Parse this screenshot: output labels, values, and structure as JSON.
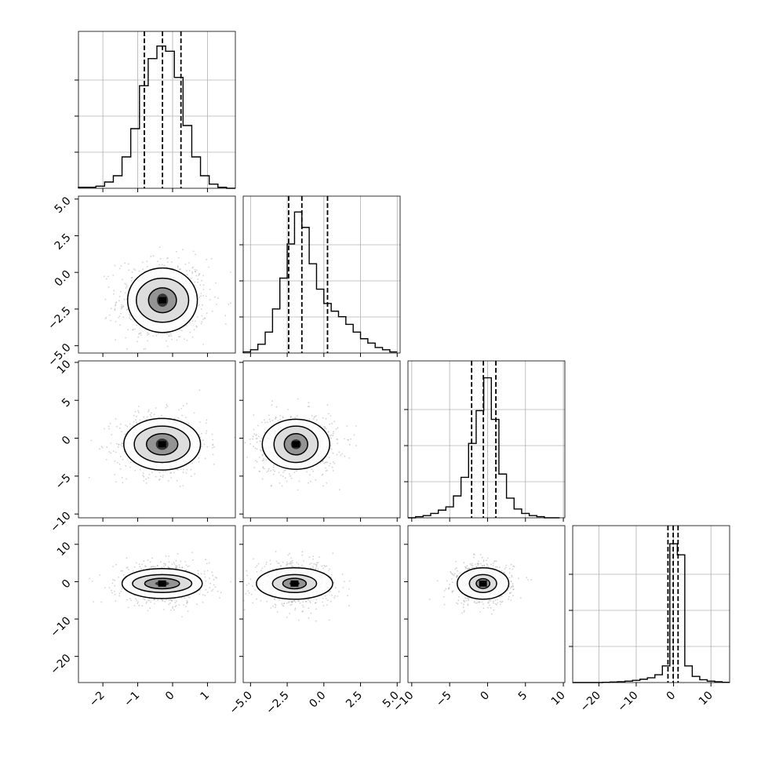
{
  "chart_data": {
    "type": "corner",
    "colors": {
      "hist": "#000000",
      "scatter": "#9a9a9a",
      "grid": "#b0b0b0",
      "quantile": "#000000"
    },
    "dims": [
      {
        "lim": [
          -2.7,
          1.8
        ],
        "ticks": [
          -2,
          -1,
          0,
          1
        ],
        "tick_labels": [
          "−2",
          "−1",
          "0",
          "1"
        ],
        "hist_x": [
          -2.7,
          -2.45,
          -2.2,
          -1.95,
          -1.7,
          -1.45,
          -1.2,
          -0.95,
          -0.7,
          -0.45,
          -0.2,
          0.05,
          0.3,
          0.55,
          0.8,
          1.05,
          1.3,
          1.55,
          1.8
        ],
        "hist_counts": [
          1,
          1,
          2,
          6,
          12,
          30,
          57,
          98,
          124,
          136,
          131,
          106,
          60,
          30,
          12,
          4,
          1,
          0
        ],
        "hist_max": 138,
        "quantiles": [
          -0.81,
          -0.29,
          0.24
        ],
        "mean": -0.29,
        "sd": 0.52
      },
      {
        "lim": [
          -5.5,
          5.2
        ],
        "ticks": [
          -5.0,
          -2.5,
          0.0,
          2.5,
          5.0
        ],
        "tick_labels": [
          "−5.0",
          "−2.5",
          "0.0",
          "2.5",
          "5.0"
        ],
        "hist_x": [
          -5.5,
          -5.0,
          -4.5,
          -4.0,
          -3.5,
          -3.0,
          -2.5,
          -2.0,
          -1.5,
          -1.0,
          -0.5,
          0.0,
          0.5,
          1.0,
          1.5,
          2.0,
          2.5,
          3.0,
          3.5,
          4.0,
          4.5,
          5.0
        ],
        "hist_counts": [
          1,
          3,
          8,
          19,
          40,
          68,
          99,
          128,
          114,
          81,
          58,
          45,
          38,
          33,
          26,
          19,
          13,
          9,
          5,
          3,
          1
        ],
        "hist_max": 131,
        "quantiles": [
          -2.4,
          -1.5,
          0.25
        ],
        "mean": -1.6,
        "sd": 1.3
      },
      {
        "lim": [
          -10.5,
          10.2
        ],
        "ticks": [
          -10,
          -5,
          0,
          5,
          10
        ],
        "tick_labels": [
          "−10",
          "−5",
          "0",
          "5",
          "10"
        ],
        "hist_x": [
          -10.5,
          -9.5,
          -8.5,
          -7.5,
          -6.5,
          -5.5,
          -4.5,
          -3.5,
          -2.5,
          -1.5,
          -0.5,
          0.5,
          1.5,
          2.5,
          3.5,
          4.5,
          5.5,
          6.5,
          7.5,
          8.5,
          9.5
        ],
        "hist_counts": [
          0,
          1,
          2,
          4,
          7,
          10,
          20,
          37,
          68,
          98,
          128,
          90,
          40,
          18,
          8,
          4,
          2,
          1,
          0,
          0
        ],
        "hist_max": 132,
        "quantiles": [
          -2.1,
          -0.55,
          1.1
        ],
        "mean": -0.5,
        "sd": 1.6
      },
      {
        "lim": [
          -27,
          15
        ],
        "ticks": [
          -20,
          -10,
          0,
          10
        ],
        "tick_labels": [
          "−20",
          "−10",
          "0",
          "10"
        ],
        "hist_x": [
          -27,
          -25,
          -23,
          -21,
          -19,
          -17,
          -15,
          -13,
          -11,
          -9,
          -7,
          -5,
          -3,
          -1,
          1,
          3,
          5,
          7,
          9,
          11,
          13,
          15
        ],
        "hist_counts": [
          0,
          0,
          0,
          0,
          1,
          2,
          3,
          5,
          8,
          12,
          17,
          28,
          60,
          500,
          460,
          60,
          22,
          10,
          5,
          3,
          1
        ],
        "hist_max": 520,
        "quantiles": [
          -1.5,
          -0.1,
          1.2
        ],
        "mean": -0.1,
        "sd": 2.8
      }
    ],
    "pairs": [
      {
        "row": 1,
        "col": 0,
        "center": [
          -0.29,
          -1.9
        ],
        "spread": [
          0.5,
          1.1
        ],
        "levels": [
          [
            0.16,
            0.45
          ],
          [
            0.4,
            0.85
          ],
          [
            0.75,
            1.5
          ],
          [
            1.0,
            2.2
          ]
        ]
      },
      {
        "row": 2,
        "col": 0,
        "center": [
          -0.3,
          -0.8
        ],
        "spread": [
          0.5,
          1.6
        ],
        "levels": [
          [
            0.18,
            0.75
          ],
          [
            0.45,
            1.4
          ],
          [
            0.8,
            2.4
          ],
          [
            1.1,
            3.4
          ]
        ]
      },
      {
        "row": 2,
        "col": 1,
        "center": [
          -1.9,
          -0.8
        ],
        "spread": [
          1.1,
          1.6
        ],
        "levels": [
          [
            0.35,
            0.65
          ],
          [
            0.8,
            1.4
          ],
          [
            1.5,
            2.4
          ],
          [
            2.3,
            3.3
          ]
        ]
      },
      {
        "row": 3,
        "col": 0,
        "center": [
          -0.3,
          -0.5
        ],
        "spread": [
          0.5,
          2.2
        ],
        "levels": [
          [
            0.2,
            0.6
          ],
          [
            0.5,
            1.4
          ],
          [
            0.85,
            2.4
          ],
          [
            1.15,
            4.0
          ]
        ]
      },
      {
        "row": 3,
        "col": 1,
        "center": [
          -2.0,
          -0.5
        ],
        "spread": [
          1.1,
          2.2
        ],
        "levels": [
          [
            0.35,
            0.6
          ],
          [
            0.8,
            1.4
          ],
          [
            1.5,
            2.4
          ],
          [
            2.6,
            4.2
          ]
        ]
      },
      {
        "row": 3,
        "col": 2,
        "center": [
          -0.6,
          -0.5
        ],
        "spread": [
          1.5,
          2.2
        ],
        "levels": [
          [
            0.35,
            0.6
          ],
          [
            0.9,
            1.3
          ],
          [
            1.8,
            2.4
          ],
          [
            3.4,
            4.2
          ]
        ]
      }
    ]
  }
}
